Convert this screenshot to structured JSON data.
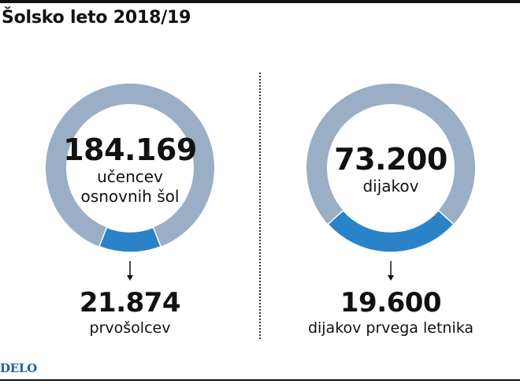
{
  "title": "Šolsko leto 2018/19",
  "logo": "DELO",
  "colors": {
    "total": "#9aaec6",
    "highlight": "#2a83c8",
    "text": "#111111",
    "logo": "#1e5fa8"
  },
  "chart_data": [
    {
      "type": "pie",
      "variant": "donut",
      "total_value": 184169,
      "total_label": "184.169",
      "total_text": [
        "učencev",
        "osnovnih šol"
      ],
      "highlight_value": 21874,
      "highlight_label": "21.874",
      "highlight_text": "prvošolcev"
    },
    {
      "type": "pie",
      "variant": "donut",
      "total_value": 73200,
      "total_label": "73.200",
      "total_text": [
        "dijakov"
      ],
      "highlight_value": 19600,
      "highlight_label": "19.600",
      "highlight_text": "dijakov prvega letnika"
    }
  ]
}
